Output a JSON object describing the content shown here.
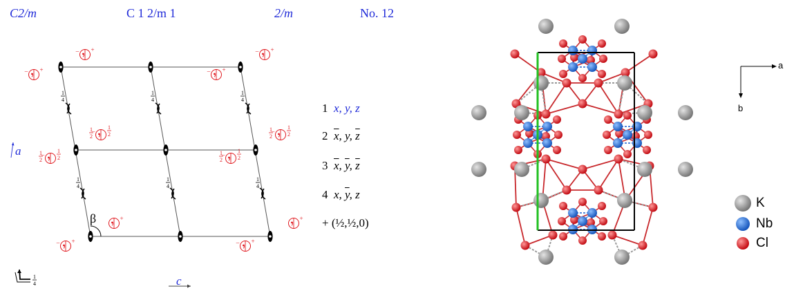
{
  "header": {
    "short_symbol": "C2/m",
    "full_symbol": "C 1 2/m 1",
    "point_group": "2/m",
    "number": "No. 12"
  },
  "positions": [
    {
      "n": "1",
      "text": "x, y, z"
    },
    {
      "n": "2",
      "text": "x̄, y, z̄"
    },
    {
      "n": "3",
      "text": "x̄, ȳ, z̄"
    },
    {
      "n": "4",
      "text": "x, ȳ, z"
    },
    {
      "n": "+",
      "text": "(½,½,0)"
    }
  ],
  "axes": {
    "a_label": "a",
    "c_label": "c",
    "beta_label": "β",
    "quarter": "1/4",
    "half": "1/2"
  },
  "structure_axes": {
    "a": "a",
    "b": "b"
  },
  "legend": [
    {
      "label": "K",
      "color": "#8c8c8c"
    },
    {
      "label": "Nb",
      "color": "#1766d8"
    },
    {
      "label": "Cl",
      "color": "#e8101a"
    }
  ],
  "colors": {
    "symbol_blue": "#1f2ad8",
    "symbol_red": "#e0181e",
    "cell_green": "#22c022",
    "bond_red": "#c8282c"
  }
}
